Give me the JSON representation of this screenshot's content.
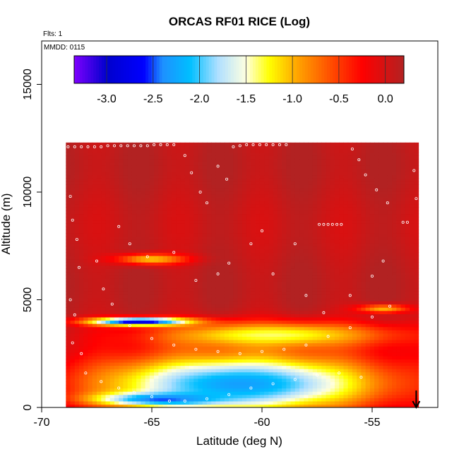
{
  "chart_data": {
    "type": "heatmap",
    "title": "ORCAS RF01 RICE (Log)",
    "flights_note": "Flts: 1",
    "date_note": "MMDD: 0115",
    "xlabel": "Latitude (deg N)",
    "ylabel": "Altitude (m)",
    "xlim": [
      -70,
      -52
    ],
    "ylim": [
      0,
      17000
    ],
    "xticks": [
      -70,
      -65,
      -60,
      -55
    ],
    "xtick_labels": [
      "-70",
      "-65",
      "-60",
      "-55"
    ],
    "yticks": [
      0,
      5000,
      10000,
      15000
    ],
    "ytick_labels": [
      "0",
      "5000",
      "10000",
      "15000"
    ],
    "colorbar": {
      "range": [
        -3.35,
        0.2
      ],
      "ticks": [
        -3.0,
        -2.5,
        -2.0,
        -1.5,
        -1.0,
        -0.5,
        0.0
      ],
      "tick_labels": [
        "-3.0",
        "-2.5",
        "-2.0",
        "-1.5",
        "-1.0",
        "-0.5",
        "0.0"
      ],
      "colors": [
        "#7f00ff",
        "#0000cd",
        "#0000ff",
        "#1e90ff",
        "#00bfff",
        "#b0e0ff",
        "#ffffe0",
        "#ffff00",
        "#ffa500",
        "#ff4500",
        "#ff0000",
        "#b22222"
      ],
      "stops": [
        -3.35,
        -3.0,
        -2.6,
        -2.4,
        -2.1,
        -1.8,
        -1.5,
        -1.25,
        -0.95,
        -0.55,
        -0.25,
        0.2
      ]
    },
    "background_value": 0.1,
    "data_extent": {
      "lat_min": -68.9,
      "lat_max": -52.9,
      "alt_bottom": 0,
      "alt_top": 12300,
      "lat_step": 0.2,
      "alt_step": 150
    },
    "features": [
      {
        "name": "mid-level ice layer",
        "center_lat": -65.0,
        "center_alt": 6900,
        "lat_spread": 1.6,
        "alt_spread": 250,
        "value": -1.1
      },
      {
        "name": "strong depletion band",
        "center_lat": -65.5,
        "center_alt": 4000,
        "lat_spread": 2.3,
        "alt_spread": 190,
        "value": -3.1
      },
      {
        "name": "upper edge of low cloud",
        "center_lat": -59.5,
        "center_alt": 3400,
        "lat_spread": 5.5,
        "alt_spread": 600,
        "value": -1.3
      },
      {
        "name": "boundary-layer low values",
        "center_lat": -61.0,
        "center_alt": 1100,
        "lat_spread": 6.5,
        "alt_spread": 1400,
        "value": -2.3
      },
      {
        "name": "near-surface blue patch",
        "center_lat": -64.5,
        "center_alt": 400,
        "lat_spread": 2.8,
        "alt_spread": 300,
        "value": -2.5
      },
      {
        "name": "northern high-lat band",
        "center_lat": -54.5,
        "center_alt": 4600,
        "lat_spread": 1.2,
        "alt_spread": 200,
        "value": -1.0
      }
    ],
    "flight_track_points": [
      [
        -68.8,
        12100
      ],
      [
        -68.5,
        12100
      ],
      [
        -68.2,
        12100
      ],
      [
        -67.9,
        12100
      ],
      [
        -67.6,
        12100
      ],
      [
        -67.3,
        12100
      ],
      [
        -67.0,
        12150
      ],
      [
        -66.7,
        12150
      ],
      [
        -66.4,
        12150
      ],
      [
        -66.1,
        12150
      ],
      [
        -65.8,
        12150
      ],
      [
        -65.5,
        12150
      ],
      [
        -65.2,
        12150
      ],
      [
        -64.9,
        12200
      ],
      [
        -64.6,
        12200
      ],
      [
        -64.3,
        12200
      ],
      [
        -64.0,
        12200
      ],
      [
        -63.5,
        11700
      ],
      [
        -63.2,
        10900
      ],
      [
        -62.8,
        10000
      ],
      [
        -62.5,
        9500
      ],
      [
        -62.0,
        11200
      ],
      [
        -61.6,
        10600
      ],
      [
        -61.3,
        12100
      ],
      [
        -61.0,
        12150
      ],
      [
        -60.7,
        12200
      ],
      [
        -60.4,
        12200
      ],
      [
        -60.1,
        12200
      ],
      [
        -59.8,
        12200
      ],
      [
        -59.5,
        12200
      ],
      [
        -59.2,
        12200
      ],
      [
        -58.9,
        12200
      ],
      [
        -57.4,
        8500
      ],
      [
        -57.2,
        8500
      ],
      [
        -57.0,
        8500
      ],
      [
        -56.8,
        8500
      ],
      [
        -56.6,
        8500
      ],
      [
        -56.4,
        8500
      ],
      [
        -55.9,
        12000
      ],
      [
        -55.6,
        11500
      ],
      [
        -55.3,
        10800
      ],
      [
        -54.8,
        10100
      ],
      [
        -54.3,
        9500
      ],
      [
        -53.6,
        8600
      ],
      [
        -53.4,
        8600
      ],
      [
        -53.2,
        12500
      ],
      [
        -53.1,
        11000
      ],
      [
        -53.0,
        9700
      ],
      [
        -68.7,
        9800
      ],
      [
        -68.6,
        8700
      ],
      [
        -68.4,
        7800
      ],
      [
        -68.3,
        6500
      ],
      [
        -68.7,
        5000
      ],
      [
        -68.5,
        4300
      ],
      [
        -68.6,
        3000
      ],
      [
        -68.2,
        2500
      ],
      [
        -67.5,
        6800
      ],
      [
        -67.2,
        5500
      ],
      [
        -66.8,
        4800
      ],
      [
        -66.0,
        3800
      ],
      [
        -65.0,
        3200
      ],
      [
        -64.0,
        2900
      ],
      [
        -63.0,
        2700
      ],
      [
        -62.0,
        2600
      ],
      [
        -61.0,
        2500
      ],
      [
        -60.0,
        2600
      ],
      [
        -59.0,
        2700
      ],
      [
        -58.0,
        2900
      ],
      [
        -57.0,
        3300
      ],
      [
        -56.0,
        3700
      ],
      [
        -55.0,
        4200
      ],
      [
        -54.2,
        4700
      ],
      [
        -66.5,
        8400
      ],
      [
        -66.0,
        7600
      ],
      [
        -65.2,
        7000
      ],
      [
        -64.0,
        7200
      ],
      [
        -63.0,
        5900
      ],
      [
        -62.0,
        6200
      ],
      [
        -61.5,
        6700
      ],
      [
        -60.5,
        7600
      ],
      [
        -60.0,
        8200
      ],
      [
        -59.5,
        6200
      ],
      [
        -58.5,
        7600
      ],
      [
        -58.0,
        5200
      ],
      [
        -57.2,
        4400
      ],
      [
        -56.0,
        5200
      ],
      [
        -55.0,
        6100
      ],
      [
        -54.5,
        6800
      ],
      [
        -68.0,
        1600
      ],
      [
        -67.3,
        1200
      ],
      [
        -66.5,
        900
      ],
      [
        -65.8,
        700
      ],
      [
        -65.0,
        500
      ],
      [
        -64.2,
        300
      ],
      [
        -63.5,
        300
      ],
      [
        -62.5,
        400
      ],
      [
        -61.5,
        600
      ],
      [
        -60.5,
        900
      ],
      [
        -59.5,
        1100
      ],
      [
        -58.5,
        1300
      ],
      [
        -57.5,
        1500
      ],
      [
        -56.5,
        1600
      ],
      [
        -55.5,
        1400
      ]
    ],
    "annotation": {
      "symbol": "arrow-down",
      "lat": -53.0,
      "meaning": "flight endpoint marker"
    }
  }
}
